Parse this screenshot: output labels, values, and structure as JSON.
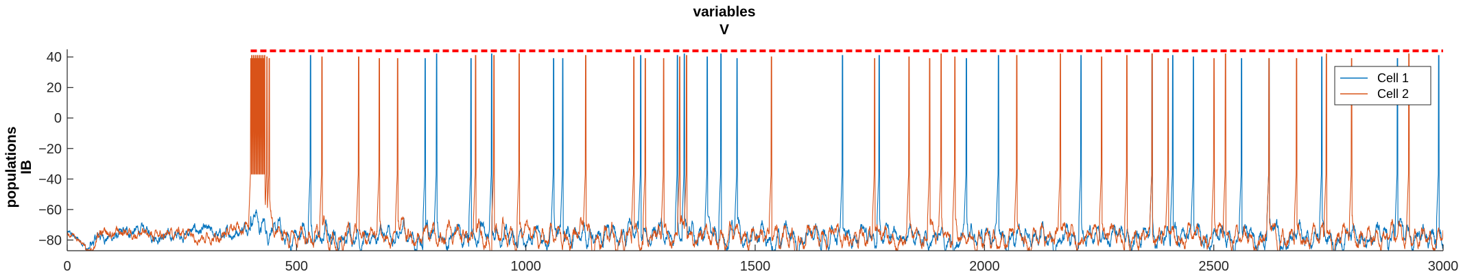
{
  "chart_data": {
    "type": "line",
    "title": [
      "variables",
      "V"
    ],
    "ylabel": [
      "populations",
      "IB"
    ],
    "xlabel": "",
    "xlim": [
      0,
      3000
    ],
    "ylim": [
      -87,
      45
    ],
    "xticks": [
      0,
      500,
      1000,
      1500,
      2000,
      2500,
      3000
    ],
    "yticks": [
      40,
      20,
      0,
      -20,
      -40,
      -60,
      -80
    ],
    "threshold_line": {
      "y": 44,
      "color": "#ff0000",
      "style": "dashed",
      "x_range": [
        400,
        3000
      ]
    },
    "legend": {
      "position": "top-right"
    },
    "resting_level": -78,
    "series": [
      {
        "name": "Cell 1",
        "color": "#0072bd",
        "spike_times": [
          530,
          780,
          805,
          880,
          925,
          1060,
          1080,
          1250,
          1330,
          1345,
          1395,
          1425,
          1460,
          1690,
          1770,
          1960,
          2030,
          2210,
          2365,
          2410,
          2455,
          2560,
          2620,
          2735,
          2900,
          2990
        ]
      },
      {
        "name": "Cell 2",
        "color": "#d95319",
        "spike_times": [
          400,
          402,
          404,
          406,
          408,
          410,
          412,
          414,
          416,
          418,
          420,
          422,
          424,
          426,
          428,
          430,
          435,
          440,
          555,
          635,
          680,
          720,
          890,
          930,
          985,
          1130,
          1235,
          1260,
          1300,
          1335,
          1350,
          1535,
          1760,
          1835,
          1880,
          1905,
          1935,
          2070,
          2165,
          2255,
          2310,
          2365,
          2400,
          2500,
          2525,
          2620,
          2680,
          2745,
          2800,
          2925
        ]
      }
    ]
  }
}
